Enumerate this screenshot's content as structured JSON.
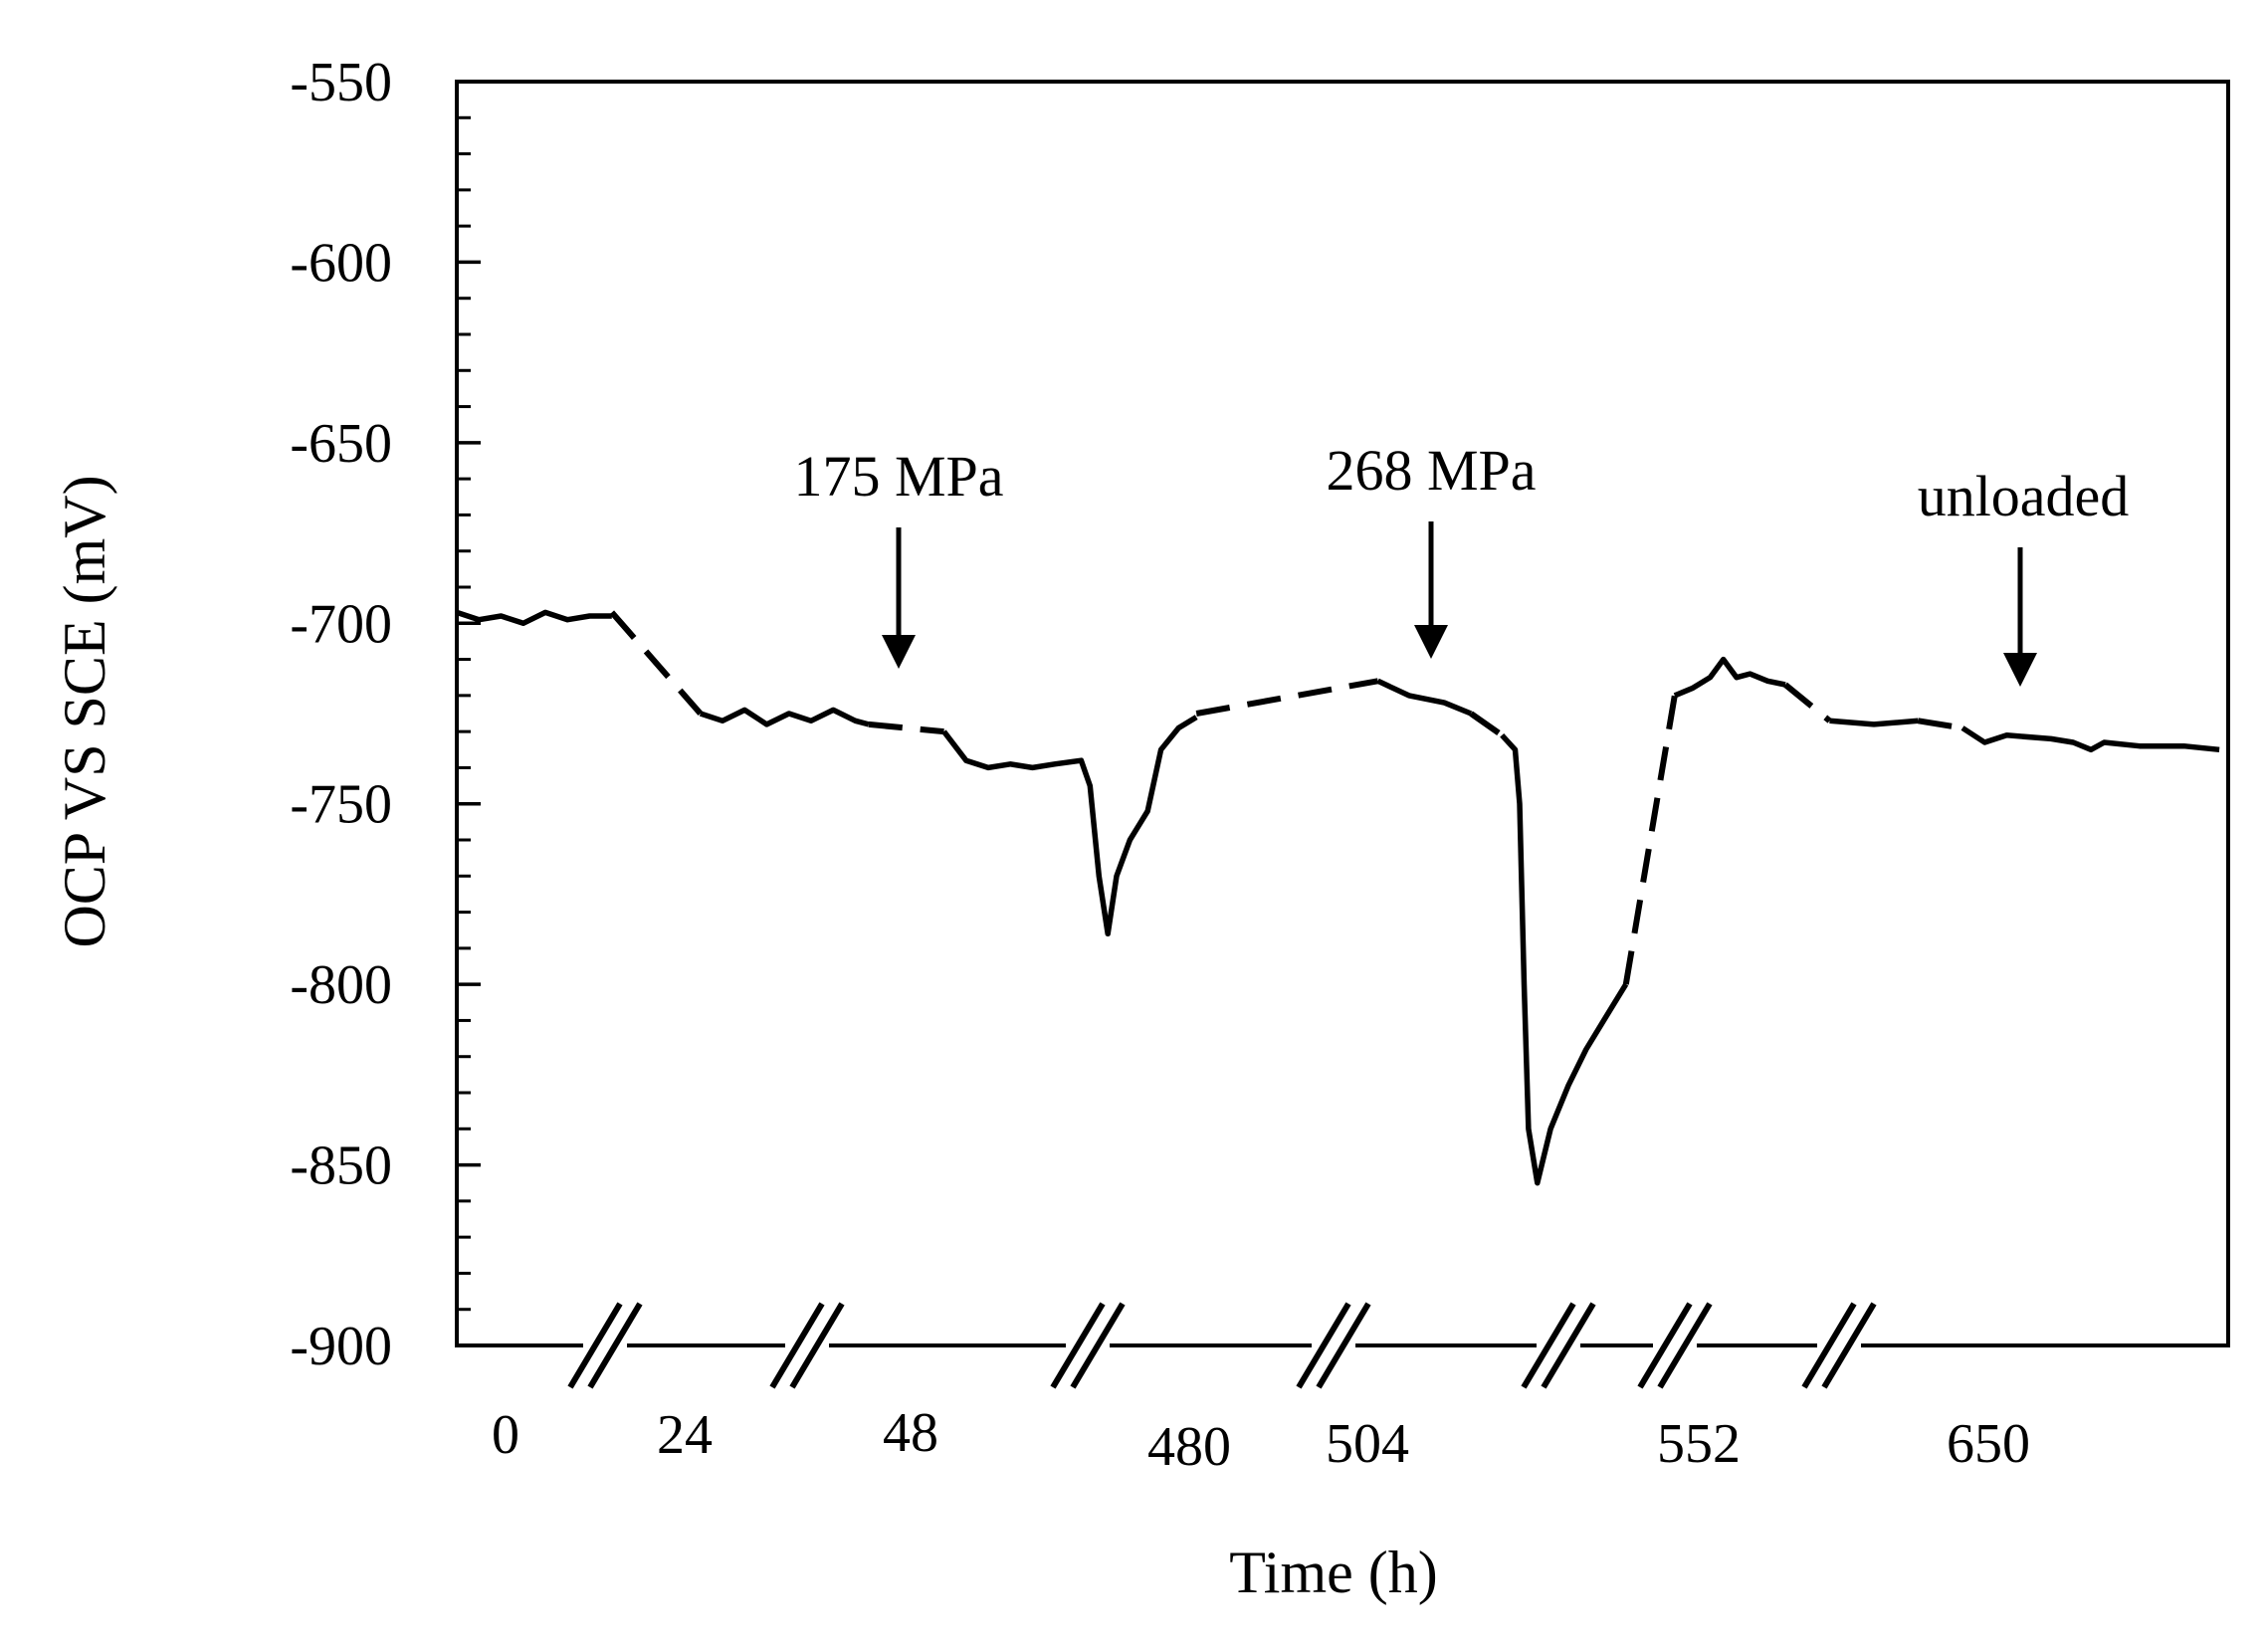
{
  "chart_data": {
    "type": "line",
    "title": "",
    "xlabel": "Time (h)",
    "ylabel": "OCP VS SCE (mV)",
    "ylim": [
      -900,
      -550
    ],
    "yticks": [
      -550,
      -600,
      -650,
      -700,
      -750,
      -800,
      -850,
      -900
    ],
    "x_categories": [
      "0",
      "24",
      "48",
      "480",
      "504",
      "552",
      "650"
    ],
    "x_axis_breaks": true,
    "grid": false,
    "legend": "none",
    "line_color": "#000000",
    "annotations": [
      {
        "text": "175 MPa",
        "at_time_h": "48",
        "value_mv": -735
      },
      {
        "text": "268 MPa",
        "at_time_h": "504",
        "value_mv": -730
      },
      {
        "text": "unloaded",
        "at_time_h": "650",
        "value_mv": -720
      }
    ],
    "segments": [
      {
        "label": "0",
        "style": "solid",
        "points": [
          [
            0.0,
            -697
          ],
          [
            0.5,
            -699
          ],
          [
            1.0,
            -698
          ],
          [
            1.5,
            -700
          ],
          [
            2.0,
            -697
          ],
          [
            2.5,
            -699
          ],
          [
            3.0,
            -698
          ],
          [
            3.5,
            -698
          ]
        ]
      },
      {
        "label": "0-24",
        "style": "dashed",
        "points": [
          [
            3.5,
            -697
          ],
          [
            5.5,
            -725
          ]
        ]
      },
      {
        "label": "24",
        "style": "solid",
        "points": [
          [
            5.5,
            -725
          ],
          [
            6.0,
            -727
          ],
          [
            6.5,
            -724
          ],
          [
            7.0,
            -728
          ],
          [
            7.5,
            -725
          ],
          [
            8.0,
            -727
          ],
          [
            8.5,
            -724
          ],
          [
            9.0,
            -727
          ],
          [
            9.3,
            -728
          ]
        ]
      },
      {
        "label": "24-48",
        "style": "dashed",
        "points": [
          [
            9.3,
            -728
          ],
          [
            11.0,
            -730
          ]
        ]
      },
      {
        "label": "48",
        "style": "solid",
        "points": [
          [
            11.0,
            -730
          ],
          [
            11.5,
            -738
          ],
          [
            12.0,
            -740
          ],
          [
            12.5,
            -739
          ],
          [
            13.0,
            -740
          ],
          [
            13.5,
            -739
          ],
          [
            14.1,
            -738
          ],
          [
            14.3,
            -745
          ],
          [
            14.5,
            -770
          ],
          [
            14.7,
            -786
          ],
          [
            14.9,
            -770
          ],
          [
            15.2,
            -760
          ],
          [
            15.6,
            -752
          ],
          [
            15.9,
            -735
          ],
          [
            16.3,
            -729
          ],
          [
            16.7,
            -726
          ]
        ]
      },
      {
        "label": "48-480",
        "style": "dashed",
        "points": [
          [
            16.7,
            -725
          ],
          [
            20.8,
            -716
          ]
        ]
      },
      {
        "label": "480",
        "style": "solid",
        "points": [
          [
            20.8,
            -716
          ],
          [
            21.5,
            -720
          ],
          [
            22.3,
            -722
          ],
          [
            22.9,
            -725
          ]
        ]
      },
      {
        "label": "480-504",
        "style": "dashed",
        "points": [
          [
            22.9,
            -725
          ],
          [
            23.6,
            -731
          ]
        ]
      },
      {
        "label": "504",
        "style": "solid",
        "points": [
          [
            23.6,
            -731
          ],
          [
            23.9,
            -735
          ],
          [
            24.0,
            -750
          ],
          [
            24.1,
            -800
          ],
          [
            24.2,
            -840
          ],
          [
            24.4,
            -855
          ],
          [
            24.7,
            -840
          ],
          [
            25.1,
            -828
          ],
          [
            25.5,
            -818
          ],
          [
            25.9,
            -810
          ],
          [
            26.4,
            -800
          ]
        ]
      },
      {
        "label": "504-552",
        "style": "dashed",
        "points": [
          [
            26.4,
            -800
          ],
          [
            27.5,
            -720
          ]
        ]
      },
      {
        "label": "552",
        "style": "solid",
        "points": [
          [
            27.5,
            -720
          ],
          [
            27.9,
            -718
          ],
          [
            28.3,
            -715
          ],
          [
            28.6,
            -710
          ],
          [
            28.9,
            -715
          ],
          [
            29.2,
            -714
          ],
          [
            29.6,
            -716
          ],
          [
            30.0,
            -717
          ]
        ]
      },
      {
        "label": "552-650",
        "style": "dashed",
        "points": [
          [
            30.0,
            -717
          ],
          [
            31.0,
            -727
          ]
        ]
      },
      {
        "label": "650-a",
        "style": "solid",
        "points": [
          [
            31.0,
            -727
          ],
          [
            32.0,
            -728
          ],
          [
            33.0,
            -727
          ]
        ]
      },
      {
        "label": "650-gap",
        "style": "dashed",
        "points": [
          [
            33.0,
            -727
          ],
          [
            34.0,
            -729
          ]
        ]
      },
      {
        "label": "650-b",
        "style": "solid",
        "points": [
          [
            34.0,
            -729
          ],
          [
            34.5,
            -733
          ],
          [
            35.0,
            -731
          ],
          [
            36.0,
            -732
          ],
          [
            36.5,
            -733
          ],
          [
            36.9,
            -735
          ],
          [
            37.2,
            -733
          ],
          [
            38.0,
            -734
          ],
          [
            39.0,
            -734
          ],
          [
            39.8,
            -735
          ]
        ]
      }
    ]
  }
}
